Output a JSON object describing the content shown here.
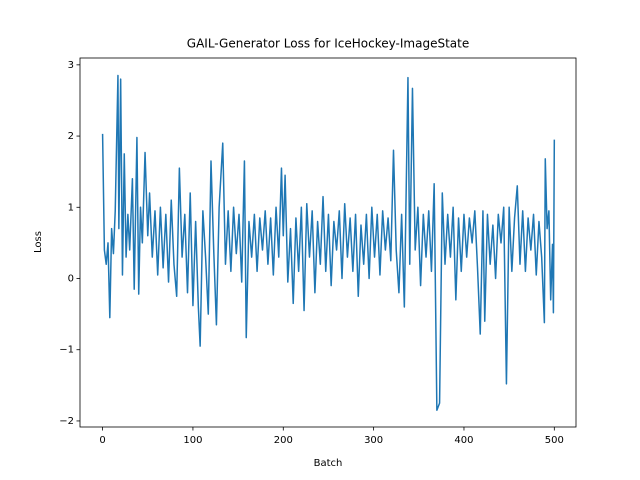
{
  "chart_data": {
    "type": "line",
    "title": "GAIL-Generator Loss for IceHockey-ImageState",
    "x_label": "Batch",
    "y_label": "Loss",
    "x": [
      0,
      2,
      4,
      6,
      8,
      10,
      12,
      14,
      17,
      18,
      20,
      22,
      24,
      26,
      28,
      30,
      33,
      35,
      38,
      40,
      42,
      44,
      47,
      50,
      52,
      55,
      58,
      61,
      64,
      67,
      70,
      73,
      76,
      79,
      82,
      85,
      88,
      91,
      94,
      97,
      100,
      103,
      106,
      108,
      111,
      114,
      117,
      120,
      123,
      126,
      129,
      133,
      136,
      139,
      142,
      145,
      148,
      151,
      154,
      157,
      159,
      162,
      165,
      168,
      171,
      174,
      177,
      180,
      183,
      186,
      189,
      192,
      195,
      198,
      200,
      202,
      205,
      208,
      211,
      214,
      217,
      220,
      223,
      226,
      229,
      232,
      235,
      238,
      241,
      244,
      247,
      250,
      253,
      256,
      259,
      262,
      265,
      268,
      271,
      274,
      277,
      280,
      283,
      286,
      289,
      292,
      295,
      298,
      301,
      304,
      307,
      310,
      313,
      316,
      319,
      322,
      325,
      328,
      331,
      334,
      338,
      340,
      343,
      346,
      349,
      352,
      355,
      358,
      361,
      364,
      367,
      370,
      373,
      376,
      379,
      382,
      385,
      388,
      391,
      394,
      397,
      400,
      403,
      406,
      409,
      412,
      415,
      418,
      421,
      423,
      426,
      429,
      432,
      435,
      438,
      441,
      444,
      447,
      450,
      453,
      456,
      459,
      462,
      465,
      468,
      471,
      474,
      477,
      480,
      483,
      486,
      489,
      490,
      492,
      494,
      496,
      498,
      499,
      500
    ],
    "series": [
      {
        "name": "Loss",
        "color": "#1f77b4",
        "values": [
          2.03,
          0.4,
          0.2,
          0.5,
          -0.55,
          0.7,
          0.35,
          0.95,
          2.85,
          0.7,
          2.8,
          0.05,
          1.75,
          0.3,
          0.9,
          0.4,
          1.4,
          -0.15,
          1.98,
          -0.22,
          1.0,
          0.5,
          1.77,
          0.6,
          1.2,
          0.3,
          0.95,
          0.05,
          1.0,
          0.15,
          0.9,
          -0.05,
          1.1,
          0.2,
          -0.25,
          1.55,
          0.3,
          0.9,
          -0.2,
          1.2,
          -0.38,
          0.8,
          -0.4,
          -0.95,
          0.95,
          0.3,
          -0.5,
          1.65,
          0.4,
          -0.65,
          1.0,
          1.9,
          0.2,
          0.95,
          0.1,
          1.0,
          0.35,
          0.9,
          -0.05,
          1.65,
          -0.83,
          0.8,
          0.3,
          0.9,
          0.1,
          0.85,
          0.4,
          0.95,
          0.2,
          0.85,
          0.05,
          1.0,
          0.3,
          1.55,
          0.6,
          1.45,
          -0.05,
          0.7,
          -0.35,
          0.85,
          0.1,
          1.0,
          -0.45,
          1.05,
          0.3,
          0.95,
          -0.2,
          0.8,
          0.2,
          1.15,
          0.1,
          0.9,
          -0.1,
          0.8,
          0.4,
          0.95,
          0.0,
          1.05,
          0.3,
          0.85,
          0.1,
          0.9,
          -0.25,
          0.75,
          0.2,
          0.9,
          0.0,
          1.0,
          0.3,
          0.9,
          0.05,
          0.95,
          0.4,
          0.85,
          0.25,
          1.8,
          0.4,
          -0.2,
          0.9,
          -0.4,
          2.82,
          0.2,
          2.67,
          0.4,
          1.0,
          -0.1,
          0.9,
          0.3,
          0.95,
          0.1,
          1.33,
          -1.85,
          -1.75,
          1.2,
          0.2,
          0.9,
          0.3,
          1.0,
          -0.3,
          0.85,
          0.1,
          0.9,
          0.3,
          0.85,
          0.5,
          0.95,
          0.15,
          -0.78,
          0.95,
          -0.6,
          0.9,
          0.2,
          0.75,
          0.0,
          0.9,
          0.5,
          1.0,
          -1.48,
          1.0,
          0.1,
          0.85,
          1.3,
          0.2,
          0.95,
          0.1,
          0.85,
          0.4,
          0.9,
          0.05,
          0.8,
          0.3,
          -0.62,
          1.68,
          0.7,
          0.95,
          -0.3,
          0.48,
          -0.48,
          1.95
        ]
      }
    ],
    "xlim": [
      -25,
      524
    ],
    "ylim": [
      -2.085,
      3.096
    ],
    "xticks": [
      0,
      100,
      200,
      300,
      400,
      500
    ],
    "yticks": [
      {
        "value": -2,
        "label": "−2"
      },
      {
        "value": -1,
        "label": "−1"
      },
      0,
      1,
      2,
      3
    ]
  }
}
